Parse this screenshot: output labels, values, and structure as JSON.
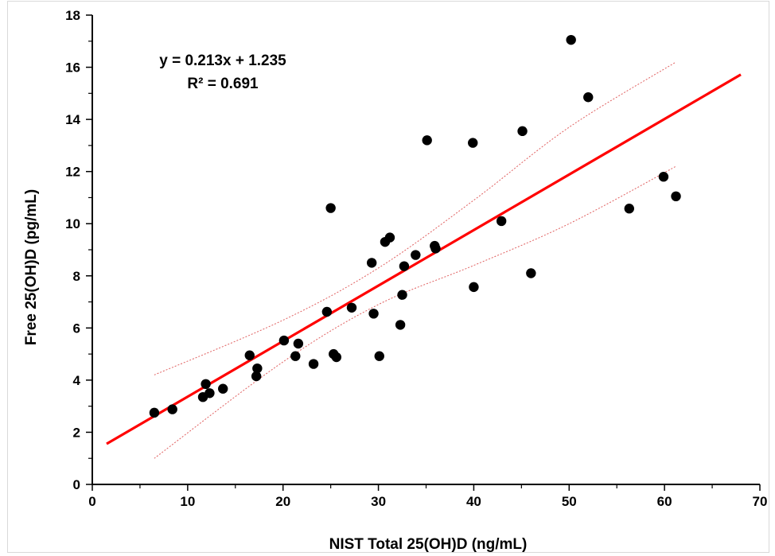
{
  "chart_data": {
    "type": "scatter",
    "title": "",
    "xlabel": "NIST  Total 25(OH)D (ng/mL)",
    "ylabel": "Free 25(OH)D (pg/mL)",
    "xlim": [
      0,
      70
    ],
    "ylim": [
      0,
      18
    ],
    "x_ticks": [
      0,
      10,
      20,
      30,
      40,
      50,
      60,
      70
    ],
    "y_ticks": [
      0,
      2,
      4,
      6,
      8,
      10,
      12,
      14,
      16,
      18
    ],
    "grid": false,
    "annotations": [
      "y = 0.213x + 1.235",
      "R² = 0.691"
    ],
    "points": [
      {
        "x": 6.5,
        "y": 2.75
      },
      {
        "x": 8.4,
        "y": 2.88
      },
      {
        "x": 11.6,
        "y": 3.35
      },
      {
        "x": 11.9,
        "y": 3.85
      },
      {
        "x": 12.3,
        "y": 3.5
      },
      {
        "x": 13.7,
        "y": 3.67
      },
      {
        "x": 16.5,
        "y": 4.95
      },
      {
        "x": 17.2,
        "y": 4.15
      },
      {
        "x": 17.3,
        "y": 4.45
      },
      {
        "x": 20.1,
        "y": 5.52
      },
      {
        "x": 21.3,
        "y": 4.92
      },
      {
        "x": 21.6,
        "y": 5.4
      },
      {
        "x": 23.2,
        "y": 4.62
      },
      {
        "x": 24.6,
        "y": 6.62
      },
      {
        "x": 25.0,
        "y": 10.6
      },
      {
        "x": 25.3,
        "y": 5.0
      },
      {
        "x": 25.6,
        "y": 4.88
      },
      {
        "x": 27.2,
        "y": 6.78
      },
      {
        "x": 29.3,
        "y": 8.5
      },
      {
        "x": 29.5,
        "y": 6.55
      },
      {
        "x": 30.1,
        "y": 4.92
      },
      {
        "x": 30.7,
        "y": 9.3
      },
      {
        "x": 31.2,
        "y": 9.47
      },
      {
        "x": 32.3,
        "y": 6.12
      },
      {
        "x": 32.5,
        "y": 7.27
      },
      {
        "x": 32.7,
        "y": 8.37
      },
      {
        "x": 33.9,
        "y": 8.8
      },
      {
        "x": 35.1,
        "y": 13.2
      },
      {
        "x": 35.9,
        "y": 9.15
      },
      {
        "x": 36.0,
        "y": 9.05
      },
      {
        "x": 39.9,
        "y": 13.1
      },
      {
        "x": 40.0,
        "y": 7.57
      },
      {
        "x": 42.9,
        "y": 10.1
      },
      {
        "x": 45.1,
        "y": 13.55
      },
      {
        "x": 46.0,
        "y": 8.1
      },
      {
        "x": 50.2,
        "y": 17.05
      },
      {
        "x": 52.0,
        "y": 14.85
      },
      {
        "x": 56.3,
        "y": 10.58
      },
      {
        "x": 59.9,
        "y": 11.8
      },
      {
        "x": 61.2,
        "y": 11.05
      }
    ],
    "fit_line": {
      "slope": 0.213,
      "intercept": 1.235,
      "x_range": [
        1.5,
        68
      ],
      "color": "#ff0000"
    },
    "confidence_band": {
      "upper": [
        [
          6.5,
          4.2
        ],
        [
          20,
          6.3
        ],
        [
          30,
          8.3
        ],
        [
          40,
          10.9
        ],
        [
          50,
          13.7
        ],
        [
          61.2,
          16.2
        ]
      ],
      "lower": [
        [
          6.5,
          1.0
        ],
        [
          20,
          4.7
        ],
        [
          30,
          6.9
        ],
        [
          40,
          8.4
        ],
        [
          50,
          10.0
        ],
        [
          61.2,
          12.2
        ]
      ],
      "color": "#e06060"
    },
    "marker_color": "#000000"
  }
}
